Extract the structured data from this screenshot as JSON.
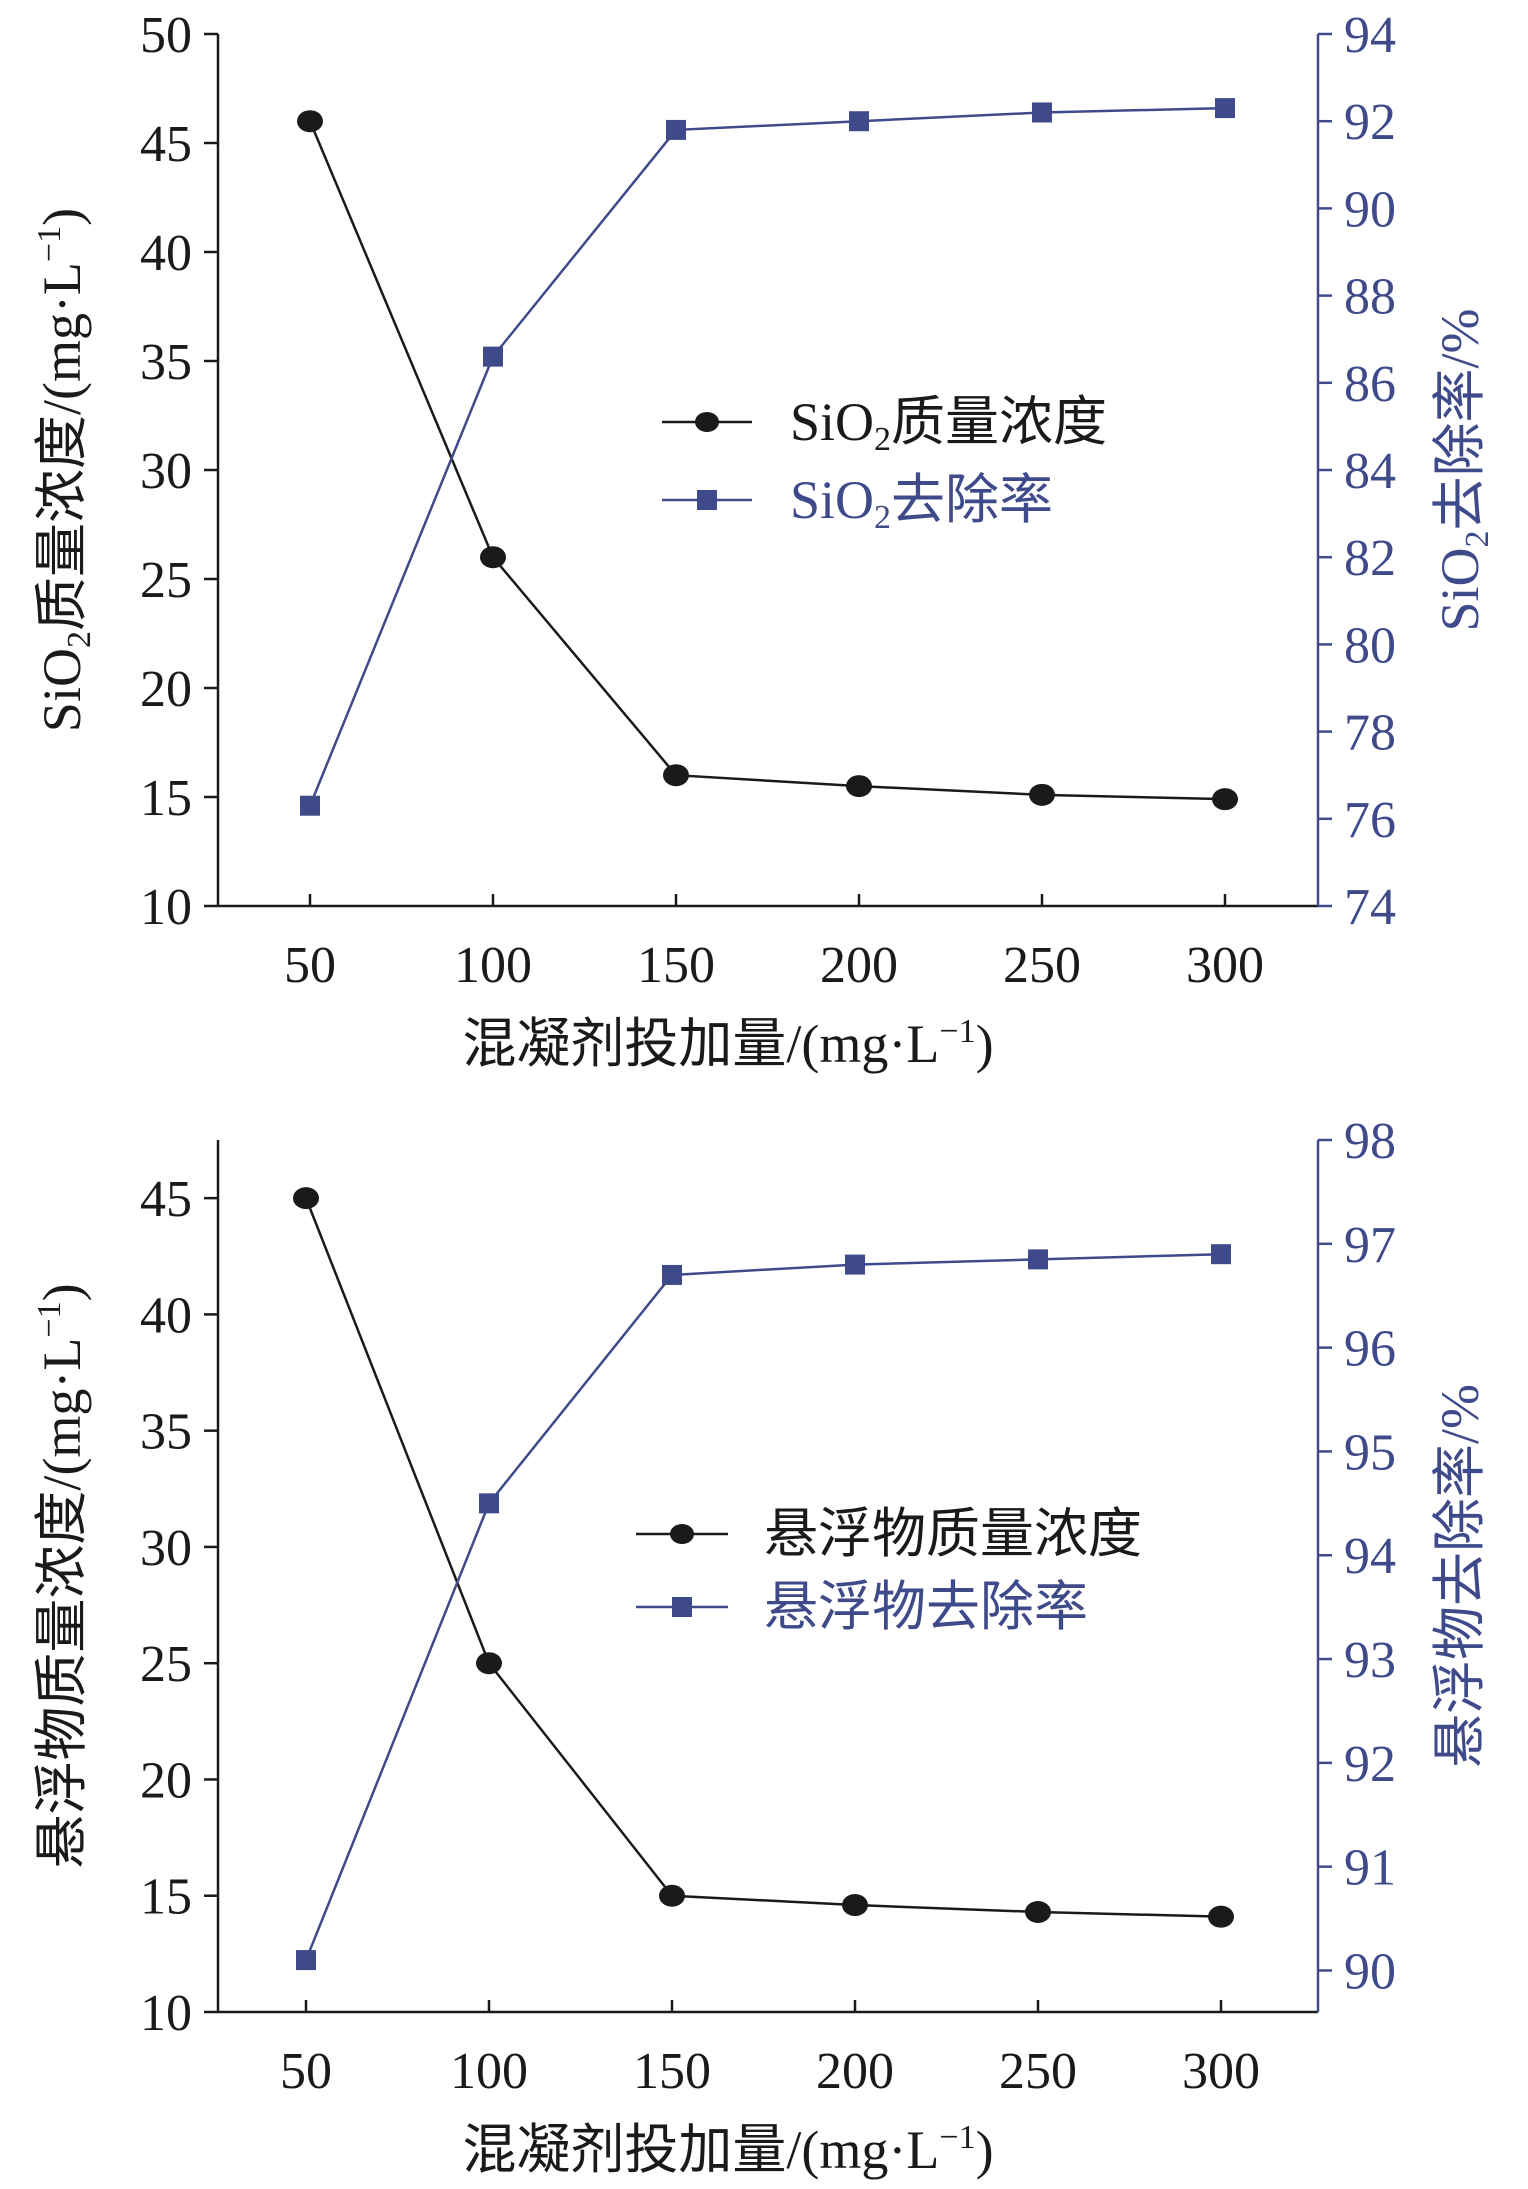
{
  "colors": {
    "conc": "#1a1a1a",
    "rate": "#3f4a8a"
  },
  "chart_data": [
    {
      "type": "line",
      "x": [
        50,
        100,
        150,
        200,
        250,
        300
      ],
      "xlabel": "混凝剂投加量/(mg·L−1)",
      "xlabel_main": "混凝剂投加量/(mg·L",
      "xlabel_sup": "−1",
      "xlabel_end": ")",
      "ylabel_main": "SiO2质量浓度/(mg·L",
      "ylabel_sup": "−1",
      "ylabel_end": ")",
      "y2label": "SiO2去除率/%",
      "ylim": [
        10,
        50
      ],
      "y2lim": [
        74,
        94
      ],
      "yticks": [
        10,
        15,
        20,
        25,
        30,
        35,
        40,
        45,
        50
      ],
      "y2ticks": [
        74,
        76,
        78,
        80,
        82,
        84,
        86,
        88,
        90,
        92,
        94
      ],
      "series": [
        {
          "name": "SiO2质量浓度",
          "axis": "left",
          "marker": "circle",
          "values": [
            46,
            26,
            16,
            15.5,
            15.1,
            14.9
          ]
        },
        {
          "name": "SiO2去除率",
          "axis": "right",
          "marker": "square",
          "values": [
            76.3,
            86.6,
            91.8,
            92.0,
            92.2,
            92.3
          ]
        }
      ],
      "legend_labels": [
        {
          "pre": "SiO",
          "sub": "2",
          "post": "质量浓度"
        },
        {
          "pre": "SiO",
          "sub": "2",
          "post": "去除率"
        }
      ],
      "ylabel_parts": {
        "pre": "SiO",
        "sub": "2",
        "post": "质量浓度/(mg·L"
      },
      "y2label_parts": {
        "pre": "SiO",
        "sub": "2",
        "post": "去除率/%"
      },
      "legend": "center-right"
    },
    {
      "type": "line",
      "x": [
        50,
        100,
        150,
        200,
        250,
        300
      ],
      "xlabel": "混凝剂投加量/(mg·L−1)",
      "xlabel_main": "混凝剂投加量/(mg·L",
      "xlabel_sup": "−1",
      "xlabel_end": ")",
      "ylabel_main": "悬浮物质量浓度/(mg·L",
      "ylabel_sup": "−1",
      "ylabel_end": ")",
      "y2label": "悬浮物去除率/%",
      "ylim": [
        10,
        47.5
      ],
      "y2lim": [
        89.6,
        98
      ],
      "yticks": [
        10,
        15,
        20,
        25,
        30,
        35,
        40,
        45
      ],
      "y2ticks": [
        90,
        91,
        92,
        93,
        94,
        95,
        96,
        97,
        98
      ],
      "series": [
        {
          "name": "悬浮物质量浓度",
          "axis": "left",
          "marker": "circle",
          "values": [
            45,
            25,
            15,
            14.6,
            14.3,
            14.1
          ]
        },
        {
          "name": "悬浮物去除率",
          "axis": "right",
          "marker": "square",
          "values": [
            90.1,
            94.5,
            96.7,
            96.8,
            96.85,
            96.9
          ]
        }
      ],
      "legend_labels": [
        {
          "pre": "悬浮物质量浓度",
          "sub": "",
          "post": ""
        },
        {
          "pre": "悬浮物去除率",
          "sub": "",
          "post": ""
        }
      ],
      "ylabel_parts": {
        "pre": "悬浮物质量浓度/(mg·L",
        "sub": "",
        "post": ""
      },
      "y2label_parts": {
        "pre": "悬浮物去除率/%",
        "sub": "",
        "post": ""
      },
      "legend": "center-right"
    }
  ]
}
